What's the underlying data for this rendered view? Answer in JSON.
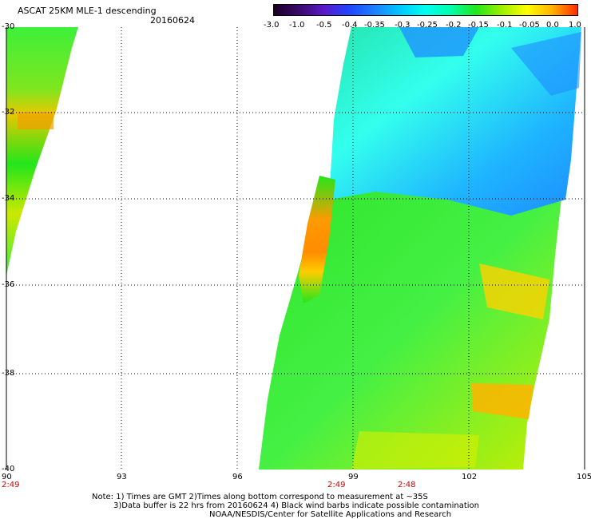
{
  "header": {
    "title": "ASCAT 25KM MLE-1 descending",
    "date": "20160624"
  },
  "colorbar": {
    "labels": [
      "-3.0",
      "-1.0",
      "-0.5",
      "-0.4",
      "-0.35",
      "-0.3",
      "-0.25",
      "-0.2",
      "-0.15",
      "-0.1",
      "-0.05",
      "0.0",
      "1.0"
    ],
    "colors": [
      "#1a0026",
      "#3a0a6a",
      "#5a1ac8",
      "#1e46ff",
      "#1e82ff",
      "#00c8ff",
      "#00ffee",
      "#00ffaa",
      "#22e61a",
      "#9bf000",
      "#ffff00",
      "#ffb400",
      "#ff2a00"
    ]
  },
  "map": {
    "lat_labels": [
      "-30",
      "-32",
      "-34",
      "-36",
      "-38",
      "-40"
    ],
    "lon_labels": [
      "90",
      "93",
      "96",
      "99",
      "102",
      "105"
    ],
    "time_labels": [
      "2:49",
      "2:49",
      "2:48"
    ]
  },
  "notes": [
    "Note: 1) Times are GMT 2)Times along bottom correspond to measurement at ~35S",
    "3)Data buffer is 22 hrs from 20160624 4) Black wind barbs indicate possible contamination",
    "NOAA/NESDIS/Center for Satellite Applications and Research"
  ]
}
